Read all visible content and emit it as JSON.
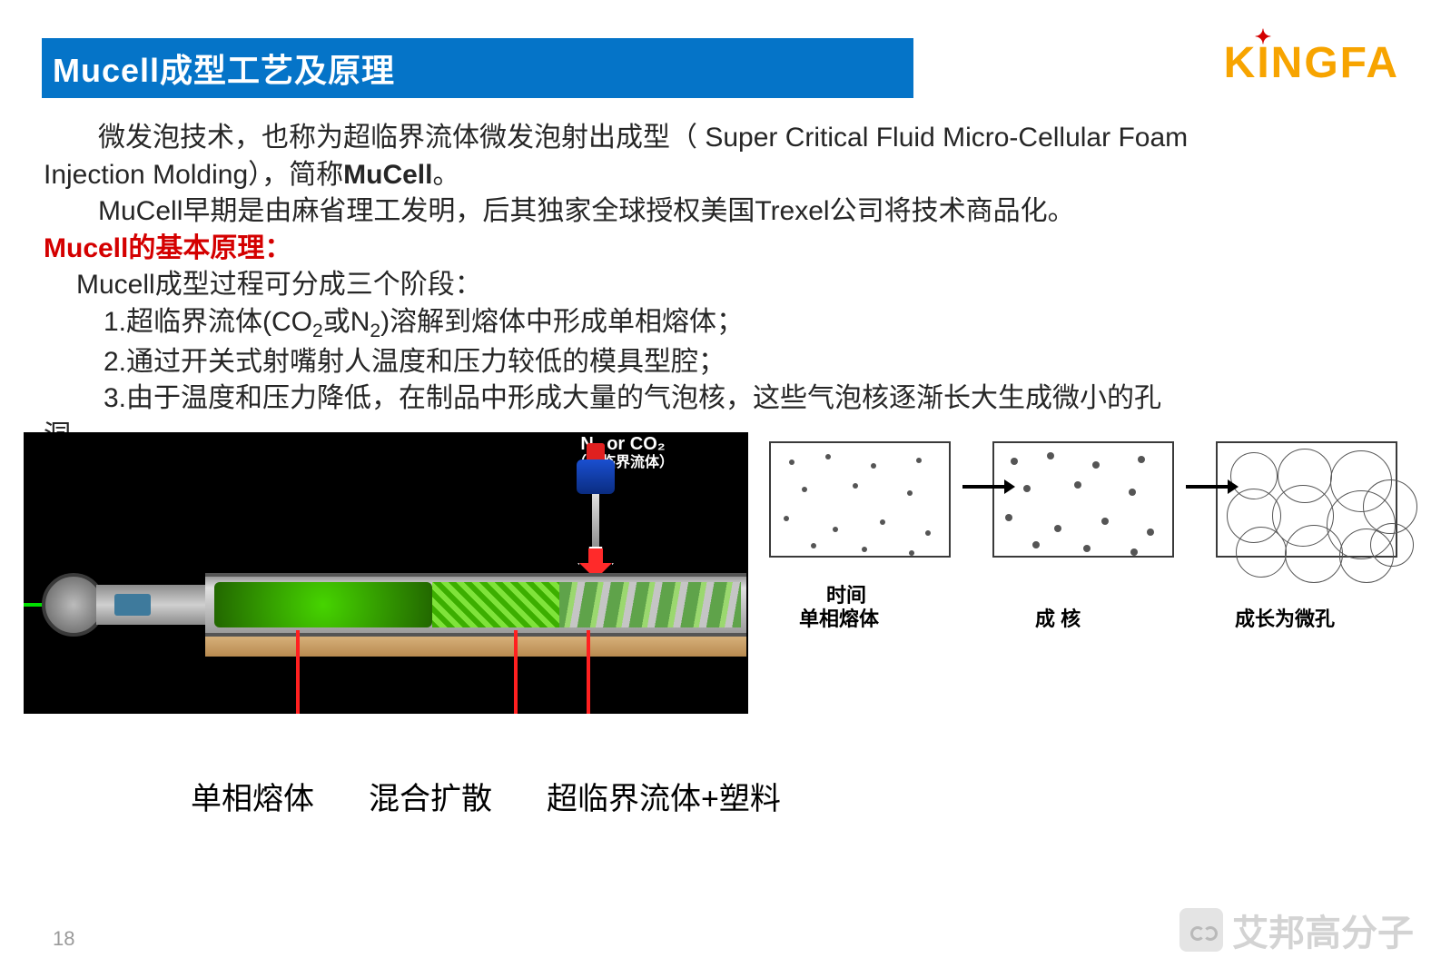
{
  "header": {
    "title": "Mucell成型工艺及原理",
    "bar_color": "#0574c8",
    "title_color": "#ffffff",
    "title_fontsize": 36
  },
  "logo": {
    "text_parts": [
      "K",
      "I",
      "NGFA"
    ],
    "brand": "KINGFA",
    "color": "#f7a400",
    "star_color": "#d40000"
  },
  "body": {
    "p1_a": "微发泡技术，也称为超临界流体微发泡射出成型（ Super Critical Fluid Micro-Cellular Foam",
    "p1_b": "Injection Molding），简称",
    "p1_b_bold": "MuCell",
    "p1_b_end": "。",
    "p2": "MuCell早期是由麻省理工发明，后其独家全球授权美国Trexel公司将技术商品化。",
    "principle_heading": "Mucell的基本原理：",
    "p3": "Mucell成型过程可分成三个阶段：",
    "step1_a": "1.超临界流体(CO",
    "step1_b": "或N",
    "step1_c": ")溶解到熔体中形成单相熔体；",
    "step2": "2.通过开关式射嘴射人温度和压力较低的模具型腔；",
    "step3": "3.由于温度和压力降低，在制品中形成大量的气泡核，这些气泡核逐渐长大生成微小的孔",
    "step3_end": "洞。",
    "text_color": "#262626",
    "red_color": "#d40000",
    "fontsize": 30
  },
  "machine_diagram": {
    "background": "#000000",
    "injector_label_line1": "N₂ or CO₂",
    "injector_label_line2": "（超临界流体）",
    "callouts": {
      "c1": "单相熔体",
      "c2": "混合扩散",
      "c3": "超临界流体+塑料"
    },
    "arrow_color": "#ff2020",
    "barrel_color": "#9c9c9c",
    "melt_color": "#2fae00",
    "base_color": "#c99a5f",
    "injector_colors": {
      "cap": "#e02020",
      "body": "#1a4fd0",
      "stem": "#c0c0c0"
    }
  },
  "cell_growth": {
    "axis": "时间",
    "stage1": "单相熔体",
    "stage2": "成 核",
    "stage3": "成长为微孔",
    "box_border": "#3a3a3a",
    "pane1_dots": [
      [
        20,
        18,
        3
      ],
      [
        60,
        12,
        3
      ],
      [
        110,
        22,
        3
      ],
      [
        160,
        16,
        3
      ],
      [
        34,
        48,
        3
      ],
      [
        90,
        44,
        3
      ],
      [
        150,
        52,
        3
      ],
      [
        14,
        80,
        3
      ],
      [
        68,
        92,
        3
      ],
      [
        120,
        84,
        3
      ],
      [
        170,
        96,
        3
      ],
      [
        44,
        110,
        3
      ],
      [
        100,
        114,
        3
      ],
      [
        152,
        118,
        3
      ]
    ],
    "pane2_dots": [
      [
        18,
        16,
        4
      ],
      [
        58,
        10,
        4
      ],
      [
        108,
        20,
        4
      ],
      [
        158,
        14,
        4
      ],
      [
        32,
        46,
        4
      ],
      [
        88,
        42,
        4
      ],
      [
        148,
        50,
        4
      ],
      [
        12,
        78,
        4
      ],
      [
        66,
        90,
        4
      ],
      [
        118,
        82,
        4
      ],
      [
        168,
        94,
        4
      ],
      [
        42,
        108,
        4
      ],
      [
        98,
        112,
        4
      ],
      [
        150,
        116,
        4
      ]
    ],
    "pane3_rings": [
      [
        14,
        10,
        26
      ],
      [
        66,
        6,
        30
      ],
      [
        124,
        8,
        34
      ],
      [
        10,
        50,
        30
      ],
      [
        60,
        46,
        34
      ],
      [
        120,
        52,
        38
      ],
      [
        160,
        40,
        30
      ],
      [
        20,
        92,
        28
      ],
      [
        74,
        90,
        32
      ],
      [
        134,
        94,
        30
      ],
      [
        168,
        88,
        24
      ]
    ]
  },
  "footer": {
    "page_number": "18",
    "watermark": "艾邦高分子"
  }
}
